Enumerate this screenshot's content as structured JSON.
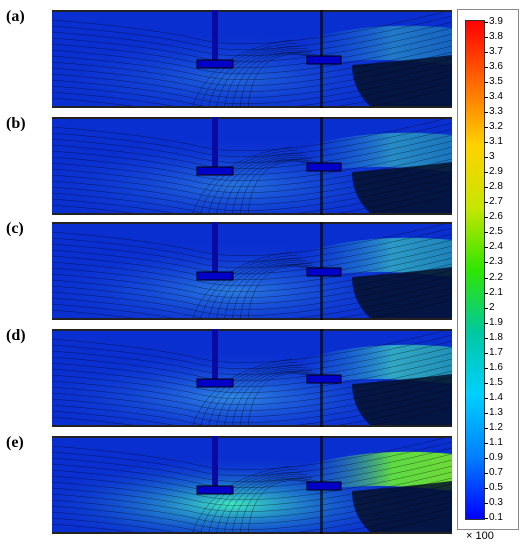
{
  "panels": [
    {
      "label": "(a)",
      "glow": 0.15
    },
    {
      "label": "(b)",
      "glow": 0.35
    },
    {
      "label": "(c)",
      "glow": 0.5
    },
    {
      "label": "(d)",
      "glow": 0.65
    },
    {
      "label": "(e)",
      "glow": 0.95
    }
  ],
  "colorbar": {
    "ticks": [
      "3.9",
      "3.8",
      "3.7",
      "3.6",
      "3.5",
      "3.4",
      "3.3",
      "3.2",
      "3.1",
      "3",
      "2.9",
      "2.8",
      "2.7",
      "2.6",
      "2.5",
      "2.4",
      "2.3",
      "2.2",
      "2.1",
      "2",
      "1.9",
      "1.8",
      "1.7",
      "1.6",
      "1.5",
      "1.4",
      "1.3",
      "1.2",
      "1.1",
      "0.9",
      "0.7",
      "0.5",
      "0.3",
      "0.1"
    ],
    "scale_note": "× 100",
    "colors": [
      "#ff0000",
      "#ff6a00",
      "#ffd200",
      "#c8e600",
      "#2ee600",
      "#00c8a0",
      "#00d0ff",
      "#0080ff",
      "#0000ff"
    ]
  }
}
